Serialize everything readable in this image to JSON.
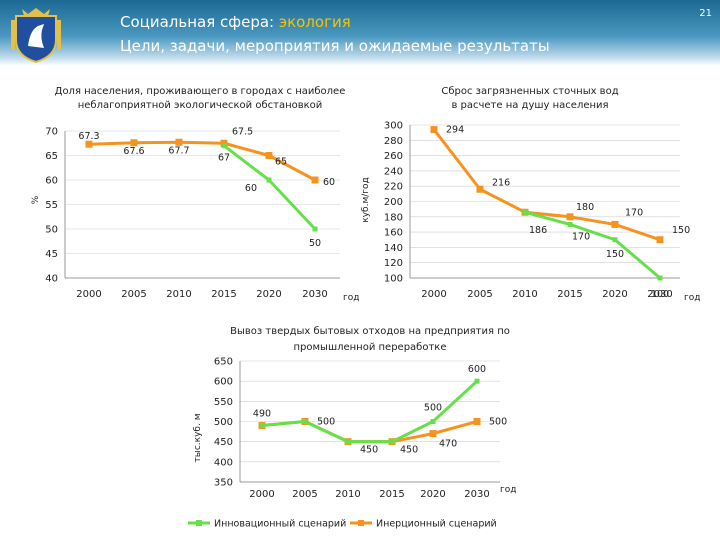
{
  "header": {
    "title_prefix": "Социальная сфера: ",
    "title_accent": "экология",
    "subtitle": "Цели, задачи, мероприятия и ожидаемые результаты",
    "page_number": "21",
    "emblem_icon": "regional-coat-of-arms-icon"
  },
  "colors": {
    "innovation": "#66e04a",
    "inertia": "#f5931e",
    "axis": "#999999",
    "grid": "#cfcfcf",
    "text": "#222222"
  },
  "chart_data": [
    {
      "id": "pop",
      "type": "line",
      "title": [
        "Доля населения, проживающего в городах с наиболее",
        "неблагоприятной экологической обстановкой"
      ],
      "ylabel": "%",
      "xlabel": "год",
      "categories": [
        "2000",
        "2005",
        "2010",
        "2015",
        "2020",
        "2030"
      ],
      "ylim": [
        40,
        70
      ],
      "yticks": [
        40,
        45,
        50,
        55,
        60,
        65,
        70
      ],
      "series": [
        {
          "name": "Инновационный сценарий",
          "values": [
            null,
            null,
            null,
            67,
            60,
            50
          ]
        },
        {
          "name": "Инерционный сценарий",
          "values": [
            67.3,
            67.6,
            67.7,
            67.5,
            65,
            60
          ]
        }
      ],
      "labels": [
        {
          "text": "67.3",
          "ci": 0,
          "v": 67.3
        },
        {
          "text": "67.6",
          "ci": 1,
          "v": 67.6
        },
        {
          "text": "67.7",
          "ci": 2,
          "v": 67.7
        },
        {
          "text": "67.5",
          "ci": 3,
          "v": 67.5
        },
        {
          "text": "67",
          "ci": 3,
          "v": 67
        },
        {
          "text": "65",
          "ci": 4,
          "v": 65
        },
        {
          "text": "60",
          "ci": 4,
          "v": 60
        },
        {
          "text": "60",
          "ci": 5,
          "v": 60
        },
        {
          "text": "50",
          "ci": 5,
          "v": 50
        }
      ]
    },
    {
      "id": "water",
      "type": "line",
      "title": [
        "Сброс загрязненных сточных вод",
        "в расчете на душу населения"
      ],
      "ylabel": "куб.м/год",
      "xlabel": "год",
      "categories": [
        "2000",
        "2005",
        "2010",
        "2015",
        "2020",
        "2030"
      ],
      "ylim": [
        100,
        300
      ],
      "yticks": [
        100,
        120,
        140,
        160,
        180,
        200,
        220,
        240,
        260,
        280,
        300
      ],
      "series": [
        {
          "name": "Инновационный сценарий",
          "values": [
            null,
            null,
            186,
            170,
            150,
            100
          ]
        },
        {
          "name": "Инерционный сценарий",
          "values": [
            294,
            216,
            186,
            180,
            170,
            150
          ]
        }
      ],
      "labels": [
        {
          "text": "294",
          "ci": 0,
          "v": 294
        },
        {
          "text": "216",
          "ci": 1,
          "v": 216
        },
        {
          "text": "186",
          "ci": 2,
          "v": 186
        },
        {
          "text": "180",
          "ci": 3,
          "v": 180
        },
        {
          "text": "170",
          "ci": 3,
          "v": 170
        },
        {
          "text": "170",
          "ci": 4,
          "v": 170
        },
        {
          "text": "150",
          "ci": 4,
          "v": 150
        },
        {
          "text": "150",
          "ci": 5,
          "v": 150
        },
        {
          "text": "100",
          "ci": 5,
          "v": 100
        }
      ]
    },
    {
      "id": "waste",
      "type": "line",
      "title": [
        "Вывоз твердых бытовых отходов на предприятия по",
        "промышленной переработке"
      ],
      "ylabel": "тыс.куб. м",
      "xlabel": "год",
      "categories": [
        "2000",
        "2005",
        "2010",
        "2015",
        "2020",
        "2030"
      ],
      "ylim": [
        350,
        650
      ],
      "yticks": [
        350,
        400,
        450,
        500,
        550,
        600,
        650
      ],
      "series": [
        {
          "name": "Инновационный сценарий",
          "values": [
            490,
            500,
            450,
            450,
            500,
            600
          ]
        },
        {
          "name": "Инерционный сценарий",
          "values": [
            490,
            500,
            450,
            450,
            470,
            500
          ]
        }
      ],
      "labels": [
        {
          "text": "490",
          "ci": 0,
          "v": 490
        },
        {
          "text": "500",
          "ci": 1,
          "v": 500
        },
        {
          "text": "450",
          "ci": 2,
          "v": 450
        },
        {
          "text": "450",
          "ci": 3,
          "v": 450
        },
        {
          "text": "500",
          "ci": 4,
          "v": 500
        },
        {
          "text": "470",
          "ci": 4,
          "v": 470
        },
        {
          "text": "600",
          "ci": 5,
          "v": 600
        },
        {
          "text": "500",
          "ci": 5,
          "v": 500
        }
      ],
      "legend": [
        "Инновационный сценарий",
        "Инерционный сценарий"
      ]
    }
  ]
}
